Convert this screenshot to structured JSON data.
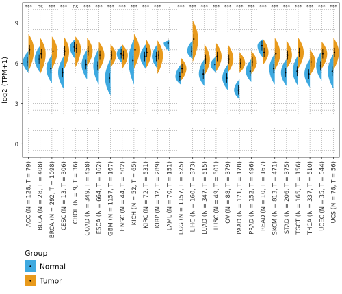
{
  "chart_data": {
    "type": "split-violin",
    "ylabel": "log2 (TPM+1)",
    "ylim": [
      -1,
      10.5
    ],
    "yticks": [
      0,
      3,
      6,
      9
    ],
    "categories": [
      "ACC (N = 128, T = 79)",
      "BLCA (N = 28, T = 408)",
      "BRCA (N = 292, T = 1098)",
      "CESC (N = 13, T = 306)",
      "CHOL (N = 9, T = 36)",
      "COAD (N = 349, T = 458)",
      "ESCA (N = 664, T = 162)",
      "GBM (N = 1157, T = 167)",
      "HNSC (N = 44, T = 502)",
      "KICH (N = 52, T = 65)",
      "KIRC (N = 72, T = 531)",
      "KIRP (N = 32, T = 289)",
      "LAML (N = 70, T = 151)",
      "LGG (N = 1157, T = 525)",
      "LIHC (N = 160, T = 373)",
      "LUAD (N = 347, T = 515)",
      "LUSC (N = 49, T = 501)",
      "OV (N = 88, T = 379)",
      "PAAD (N = 171, T = 178)",
      "PRAD (N = 152, T = 496)",
      "READ (N = 10, T = 167)",
      "SKCM (N = 813, T = 471)",
      "STAD (N = 206, T = 375)",
      "TGCT (N = 165, T = 156)",
      "THCA (N = 337, T = 510)",
      "UCEC (N = 35, T = 544)",
      "UCS (N = 78, T = 56)"
    ],
    "significance": [
      "***",
      "ns",
      "***",
      "***",
      "ns",
      "***",
      "***",
      "***",
      "***",
      "***",
      "***",
      "***",
      "",
      "***",
      "***",
      "***",
      "***",
      "***",
      "***",
      "***",
      "***",
      "***",
      "***",
      "***",
      "***",
      "***",
      "***"
    ],
    "series": [
      {
        "name": "Normal",
        "color": "#3ea9e0",
        "median": [
          6.1,
          6.3,
          5.6,
          5.3,
          7.2,
          5.9,
          5.8,
          4.9,
          6.7,
          6.2,
          6.5,
          6.5,
          7.5,
          5.0,
          6.9,
          5.2,
          5.9,
          4.9,
          4.0,
          5.4,
          7.3,
          5.6,
          5.3,
          5.4,
          5.2,
          5.8,
          5.4
        ],
        "low": [
          5.3,
          5.3,
          4.5,
          4.1,
          6.3,
          4.8,
          4.4,
          3.6,
          6.0,
          4.4,
          5.6,
          5.6,
          6.9,
          4.4,
          6.3,
          4.3,
          5.3,
          4.0,
          3.3,
          4.6,
          6.4,
          4.4,
          4.3,
          4.3,
          4.2,
          4.7,
          4.1
        ],
        "high": [
          6.9,
          7.3,
          6.6,
          6.5,
          7.8,
          7.0,
          7.1,
          6.3,
          7.3,
          7.8,
          7.4,
          7.4,
          7.7,
          5.9,
          7.7,
          6.3,
          6.5,
          5.9,
          4.8,
          6.3,
          7.8,
          6.7,
          6.3,
          6.6,
          6.3,
          6.9,
          6.7
        ]
      },
      {
        "name": "Tumor",
        "color": "#e89a1c",
        "median": [
          7.0,
          6.7,
          6.9,
          6.9,
          7.1,
          6.9,
          6.6,
          6.6,
          6.6,
          7.0,
          6.8,
          6.6,
          0,
          5.6,
          7.8,
          6.3,
          6.5,
          6.3,
          6.0,
          6.1,
          6.8,
          6.7,
          6.6,
          6.8,
          6.1,
          6.7,
          6.8
        ],
        "low": [
          5.4,
          5.2,
          5.6,
          5.5,
          5.7,
          5.8,
          5.5,
          5.7,
          5.6,
          5.6,
          5.6,
          5.2,
          0,
          4.7,
          6.1,
          5.1,
          5.4,
          5.3,
          5.3,
          5.2,
          5.9,
          5.5,
          5.6,
          5.6,
          5.1,
          5.6,
          5.5
        ],
        "high": [
          8.2,
          7.9,
          8.0,
          8.0,
          8.0,
          7.9,
          7.6,
          7.4,
          7.4,
          8.2,
          7.8,
          7.7,
          0,
          6.4,
          9.2,
          7.4,
          7.5,
          7.4,
          6.8,
          6.9,
          7.8,
          7.9,
          7.7,
          7.9,
          7.0,
          7.6,
          7.9
        ]
      }
    ],
    "legend": {
      "title": "Group",
      "position": "bottom-left"
    },
    "grid": true
  }
}
